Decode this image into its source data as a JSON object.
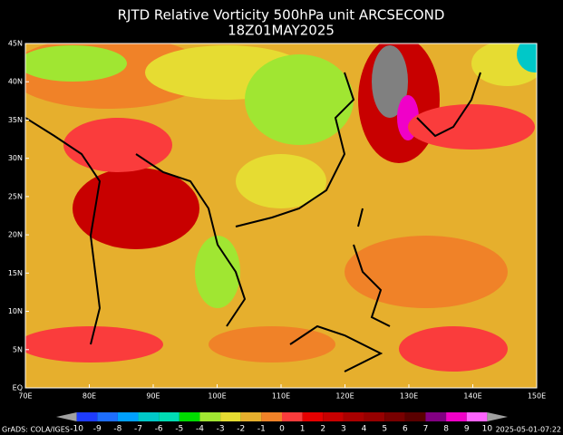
{
  "title": [
    "RJTD Relative Vorticity 500hPa unit ARCSECOND",
    "18Z01MAY2025"
  ],
  "map": {
    "xlim": [
      70,
      150
    ],
    "ylim": [
      0,
      45
    ],
    "xticks": [
      {
        "value": 70,
        "label": "70E"
      },
      {
        "value": 80,
        "label": "80E"
      },
      {
        "value": 90,
        "label": "90E"
      },
      {
        "value": 100,
        "label": "100E"
      },
      {
        "value": 110,
        "label": "110E"
      },
      {
        "value": 120,
        "label": "120E"
      },
      {
        "value": 130,
        "label": "130E"
      },
      {
        "value": 140,
        "label": "140E"
      },
      {
        "value": 150,
        "label": "150E"
      }
    ],
    "yticks": [
      {
        "value": 0,
        "label": "EQ"
      },
      {
        "value": 5,
        "label": "5N"
      },
      {
        "value": 10,
        "label": "10N"
      },
      {
        "value": 15,
        "label": "15N"
      },
      {
        "value": 20,
        "label": "20N"
      },
      {
        "value": 25,
        "label": "25N"
      },
      {
        "value": 30,
        "label": "30N"
      },
      {
        "value": 35,
        "label": "35N"
      },
      {
        "value": 40,
        "label": "40N"
      },
      {
        "value": 45,
        "label": "45N"
      }
    ]
  },
  "colorbar": {
    "values": [
      -10,
      -9,
      -8,
      -7,
      -6,
      -5,
      -4,
      -3,
      -2,
      -1,
      0,
      1,
      2,
      3,
      4,
      5,
      6,
      7,
      8,
      9,
      10
    ],
    "colors": [
      "#a0a0a0",
      "#1e3cff",
      "#1e6eff",
      "#00a0ff",
      "#00c8c8",
      "#00dcb4",
      "#00dc00",
      "#a0e632",
      "#e6dc32",
      "#e6af2d",
      "#f08228",
      "#fa3c3c",
      "#e60000",
      "#c80000",
      "#aa0000",
      "#960000",
      "#780000",
      "#5a0000",
      "#820082",
      "#f000c8",
      "#ff64ff",
      "#a0a0a0"
    ]
  },
  "footer": {
    "left": "GrADS: COLA/IGES",
    "right": "2025-05-01-07:22"
  }
}
